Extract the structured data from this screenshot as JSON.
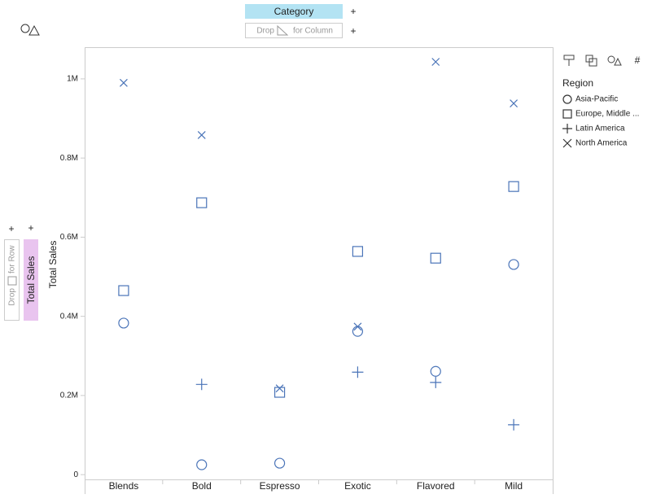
{
  "ui": {
    "column_shelf": "Category",
    "column_drop": {
      "prefix": "Drop",
      "suffix": "for Column"
    },
    "row_drop": {
      "prefix": "Drop",
      "suffix": "for Row"
    },
    "row_shelf": "Total Sales"
  },
  "chart_data": {
    "type": "point",
    "y_label": "Total Sales",
    "legend_title": "Region",
    "legend": "right",
    "categories": [
      "Blends",
      "Bold",
      "Espresso",
      "Exotic",
      "Flavored",
      "Mild"
    ],
    "ylim": [
      -12000,
      1080000
    ],
    "yticks": [
      0,
      {
        "value": 200000,
        "label": "0.2M"
      },
      {
        "value": 400000,
        "label": "0.4M"
      },
      {
        "value": 600000,
        "label": "0.6M"
      },
      {
        "value": 800000,
        "label": "0.8M"
      },
      {
        "value": 1000000,
        "label": "1M"
      }
    ],
    "series": [
      {
        "name": "Asia-Pacific",
        "marker": "circle",
        "color": "#4a74b8",
        "values": [
          383000,
          25000,
          29000,
          362000,
          261000,
          531000
        ]
      },
      {
        "name": "Europe, Middle ...",
        "marker": "square",
        "color": "#4a74b8",
        "values": [
          465000,
          687000,
          208000,
          564000,
          547000,
          728000
        ]
      },
      {
        "name": "Latin America",
        "marker": "plus",
        "color": "#4a74b8",
        "values": [
          null,
          228000,
          null,
          259000,
          233000,
          126000
        ]
      },
      {
        "name": "North America",
        "marker": "x",
        "color": "#4a74b8",
        "values": [
          990000,
          858000,
          218000,
          374000,
          1043000,
          938000
        ]
      }
    ]
  }
}
